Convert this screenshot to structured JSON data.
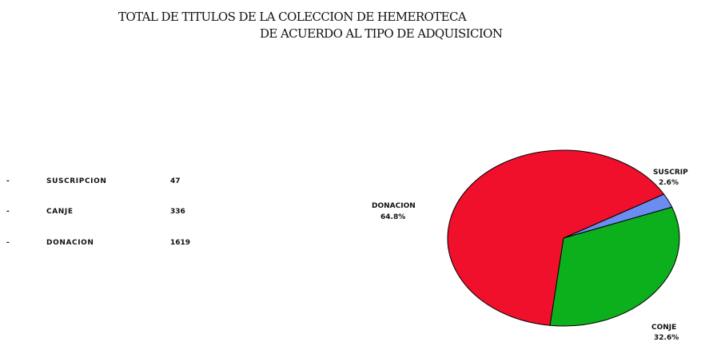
{
  "chart_data": {
    "type": "pie",
    "title": "TOTAL DE TITULOS DE LA COLECCION DE HEMEROTECA",
    "subtitle": "DE ACUERDO AL TIPO DE ADQUISICION",
    "slices": [
      {
        "label": "SUSCRIP",
        "percent_label": "2.6%",
        "value": 2.6,
        "color": "#6b8cf0"
      },
      {
        "label": "CONJE",
        "percent_label": "32.6%",
        "value": 32.6,
        "color": "#0cb01c"
      },
      {
        "label": "DONACION",
        "percent_label": "64.8%",
        "value": 64.8,
        "color": "#f0102c"
      }
    ],
    "table": [
      {
        "bullet": "-",
        "name": "SUSCRIPCION",
        "value": "47"
      },
      {
        "bullet": "-",
        "name": "CANJE",
        "value": "336"
      },
      {
        "bullet": "-",
        "name": "DONACION",
        "value": "1619"
      }
    ]
  }
}
